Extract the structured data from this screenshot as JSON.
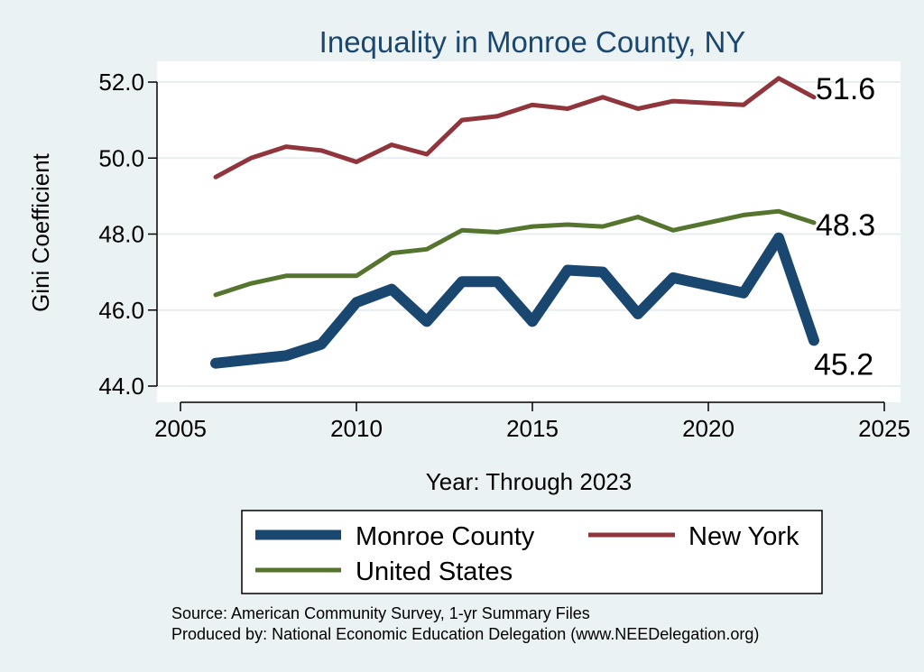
{
  "chart_data": {
    "type": "line",
    "title": "Inequality in Monroe County, NY",
    "xlabel": "Year: Through 2023",
    "ylabel": "Gini Coefficient",
    "xlim": [
      2005,
      2025
    ],
    "ylim": [
      44.0,
      52.0
    ],
    "xticks": [
      "2005",
      "2010",
      "2015",
      "2020",
      "2025"
    ],
    "yticks": [
      "44.0",
      "46.0",
      "48.0",
      "50.0",
      "52.0"
    ],
    "grid": true,
    "legend_position": "bottom",
    "series": [
      {
        "name": "Monroe County",
        "color": "#1a476f",
        "x": [
          2006,
          2007,
          2008,
          2009,
          2010,
          2011,
          2012,
          2013,
          2014,
          2015,
          2016,
          2017,
          2018,
          2019,
          2021,
          2022,
          2023
        ],
        "y": [
          44.6,
          44.7,
          44.8,
          45.1,
          46.2,
          46.55,
          45.7,
          46.75,
          46.75,
          45.7,
          47.05,
          47.0,
          45.9,
          46.85,
          46.45,
          47.9,
          45.2
        ],
        "end_label": "45.2"
      },
      {
        "name": "New York",
        "color": "#90353b",
        "x": [
          2006,
          2007,
          2008,
          2009,
          2010,
          2011,
          2012,
          2013,
          2014,
          2015,
          2016,
          2017,
          2018,
          2019,
          2021,
          2022,
          2023
        ],
        "y": [
          49.5,
          50.0,
          50.3,
          50.2,
          49.9,
          50.35,
          50.1,
          51.0,
          51.1,
          51.4,
          51.3,
          51.6,
          51.3,
          51.5,
          51.4,
          52.1,
          51.6
        ],
        "end_label": "51.6"
      },
      {
        "name": "United States",
        "color": "#55752f",
        "x": [
          2006,
          2007,
          2008,
          2009,
          2010,
          2011,
          2012,
          2013,
          2014,
          2015,
          2016,
          2017,
          2018,
          2019,
          2021,
          2022,
          2023
        ],
        "y": [
          46.4,
          46.7,
          46.9,
          46.9,
          46.9,
          47.5,
          47.6,
          48.1,
          48.05,
          48.2,
          48.25,
          48.2,
          48.45,
          48.1,
          48.5,
          48.6,
          48.3
        ],
        "end_label": "48.3"
      }
    ],
    "notes": [
      "Source: American Community Survey, 1-yr Summary Files",
      "Produced by: National Economic Education Delegation (www.NEEDelegation.org)"
    ]
  }
}
